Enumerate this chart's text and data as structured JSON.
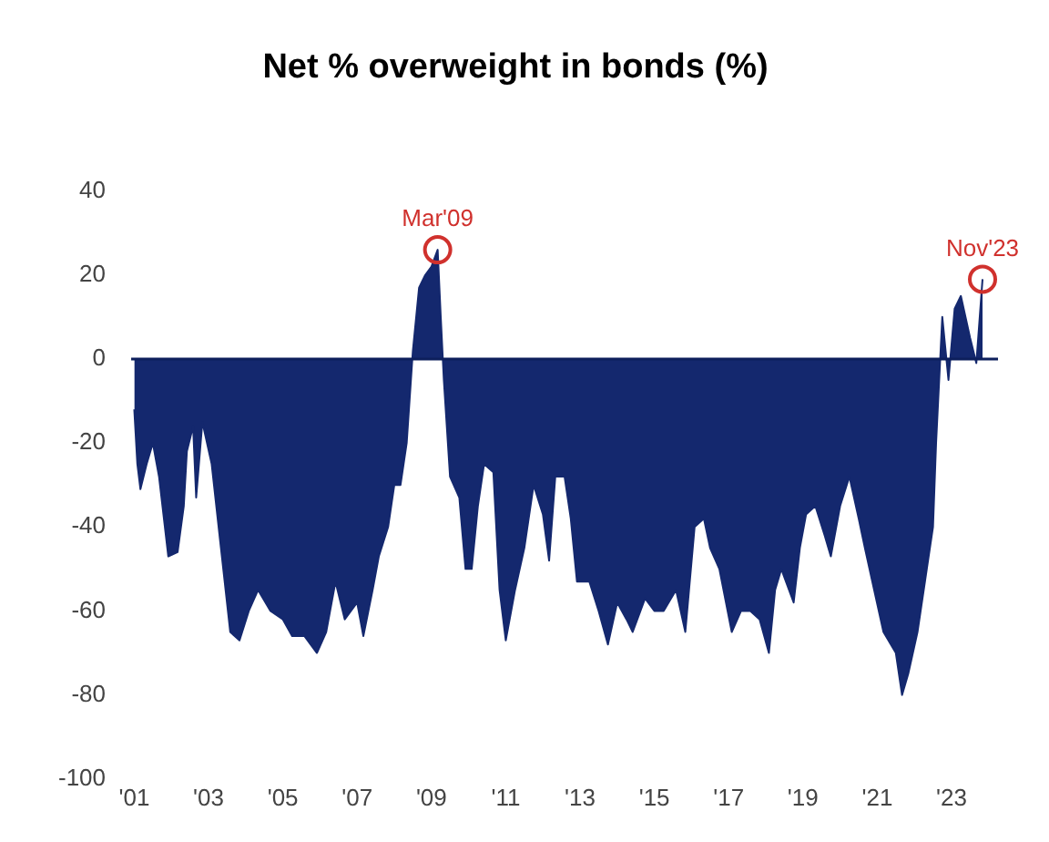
{
  "chart_data": {
    "type": "area",
    "title": "Net % overweight in bonds (%)",
    "x": [
      "2001-01",
      "2001-02",
      "2001-03",
      "2001-05",
      "2001-07",
      "2001-09",
      "2001-12",
      "2002-03",
      "2002-05",
      "2002-06",
      "2002-08",
      "2002-09",
      "2002-11",
      "2003-02",
      "2003-05",
      "2003-08",
      "2003-11",
      "2004-02",
      "2004-05",
      "2004-09",
      "2005-01",
      "2005-04",
      "2005-08",
      "2005-12",
      "2006-03",
      "2006-06",
      "2006-09",
      "2007-01",
      "2007-03",
      "2007-06",
      "2007-08",
      "2007-11",
      "2008-01",
      "2008-03",
      "2008-05",
      "2008-07",
      "2008-09",
      "2008-11",
      "2009-01",
      "2009-03",
      "2009-04",
      "2009-05",
      "2009-07",
      "2009-10",
      "2009-12",
      "2010-02",
      "2010-04",
      "2010-06",
      "2010-09",
      "2010-11",
      "2011-01",
      "2011-04",
      "2011-07",
      "2011-10",
      "2012-01",
      "2012-03",
      "2012-05",
      "2012-08",
      "2012-10",
      "2012-12",
      "2013-04",
      "2013-07",
      "2013-10",
      "2014-01",
      "2014-04",
      "2014-06",
      "2014-10",
      "2015-01",
      "2015-04",
      "2015-08",
      "2015-11",
      "2016-02",
      "2016-05",
      "2016-07",
      "2016-10",
      "2017-02",
      "2017-05",
      "2017-08",
      "2017-11",
      "2018-02",
      "2018-04",
      "2018-06",
      "2018-10",
      "2018-12",
      "2019-02",
      "2019-05",
      "2019-08",
      "2019-10",
      "2020-01",
      "2020-04",
      "2020-07",
      "2020-09",
      "2020-12",
      "2021-03",
      "2021-07",
      "2021-09",
      "2021-11",
      "2022-02",
      "2022-05",
      "2022-07",
      "2022-08",
      "2022-10",
      "2022-12",
      "2023-02",
      "2023-04",
      "2023-07",
      "2023-09",
      "2023-11"
    ],
    "series": [
      {
        "color": "#14286e",
        "values": [
          -12,
          -25,
          -31,
          -25,
          -20,
          -28,
          -47,
          -46,
          -35,
          -22,
          -16,
          -33,
          -15,
          -25,
          -45,
          -65,
          -67,
          -60,
          -55,
          -60,
          -62,
          -66,
          -66,
          -70,
          -65,
          -53,
          -62,
          -58,
          -66,
          -55,
          -47,
          -40,
          -30,
          -30,
          -20,
          2,
          17,
          20,
          22,
          26,
          10,
          -5,
          -28,
          -33,
          -50,
          -50,
          -35,
          -25,
          -27,
          -55,
          -67,
          -55,
          -45,
          -30,
          -37,
          -48,
          -28,
          -28,
          -38,
          -53,
          -53,
          -60,
          -68,
          -58,
          -62,
          -65,
          -57,
          -60,
          -60,
          -55,
          -65,
          -40,
          -38,
          -45,
          -50,
          -65,
          -60,
          -60,
          -62,
          -70,
          -55,
          -50,
          -58,
          -45,
          -37,
          -35,
          -42,
          -47,
          -35,
          -28,
          -38,
          -45,
          -55,
          -65,
          -70,
          -80,
          -75,
          -65,
          -50,
          -40,
          -20,
          10,
          -5,
          12,
          15,
          5,
          -1,
          19
        ]
      }
    ],
    "xlim": [
      "2000-12",
      "2024-04"
    ],
    "xticks": [
      {
        "value": "2001-01",
        "label": "'01"
      },
      {
        "value": "2003-01",
        "label": "'03"
      },
      {
        "value": "2005-01",
        "label": "'05"
      },
      {
        "value": "2007-01",
        "label": "'07"
      },
      {
        "value": "2009-01",
        "label": "'09"
      },
      {
        "value": "2011-01",
        "label": "'11"
      },
      {
        "value": "2013-01",
        "label": "'13"
      },
      {
        "value": "2015-01",
        "label": "'15"
      },
      {
        "value": "2017-01",
        "label": "'17"
      },
      {
        "value": "2019-01",
        "label": "'19"
      },
      {
        "value": "2021-01",
        "label": "'21"
      },
      {
        "value": "2023-01",
        "label": "'23"
      }
    ],
    "ylim": [
      -100,
      40
    ],
    "yticks": [
      40,
      20,
      0,
      -20,
      -40,
      -60,
      -80,
      -100
    ],
    "ref_lines": [
      {
        "axis": "y",
        "value": 0,
        "color": "#0d1f5c"
      }
    ],
    "annotations": [
      {
        "text": "Mar'09",
        "x": "2009-03",
        "y": 26
      },
      {
        "text": "Nov'23",
        "x": "2023-11",
        "y": 19
      }
    ],
    "grid": false,
    "legend": false
  }
}
